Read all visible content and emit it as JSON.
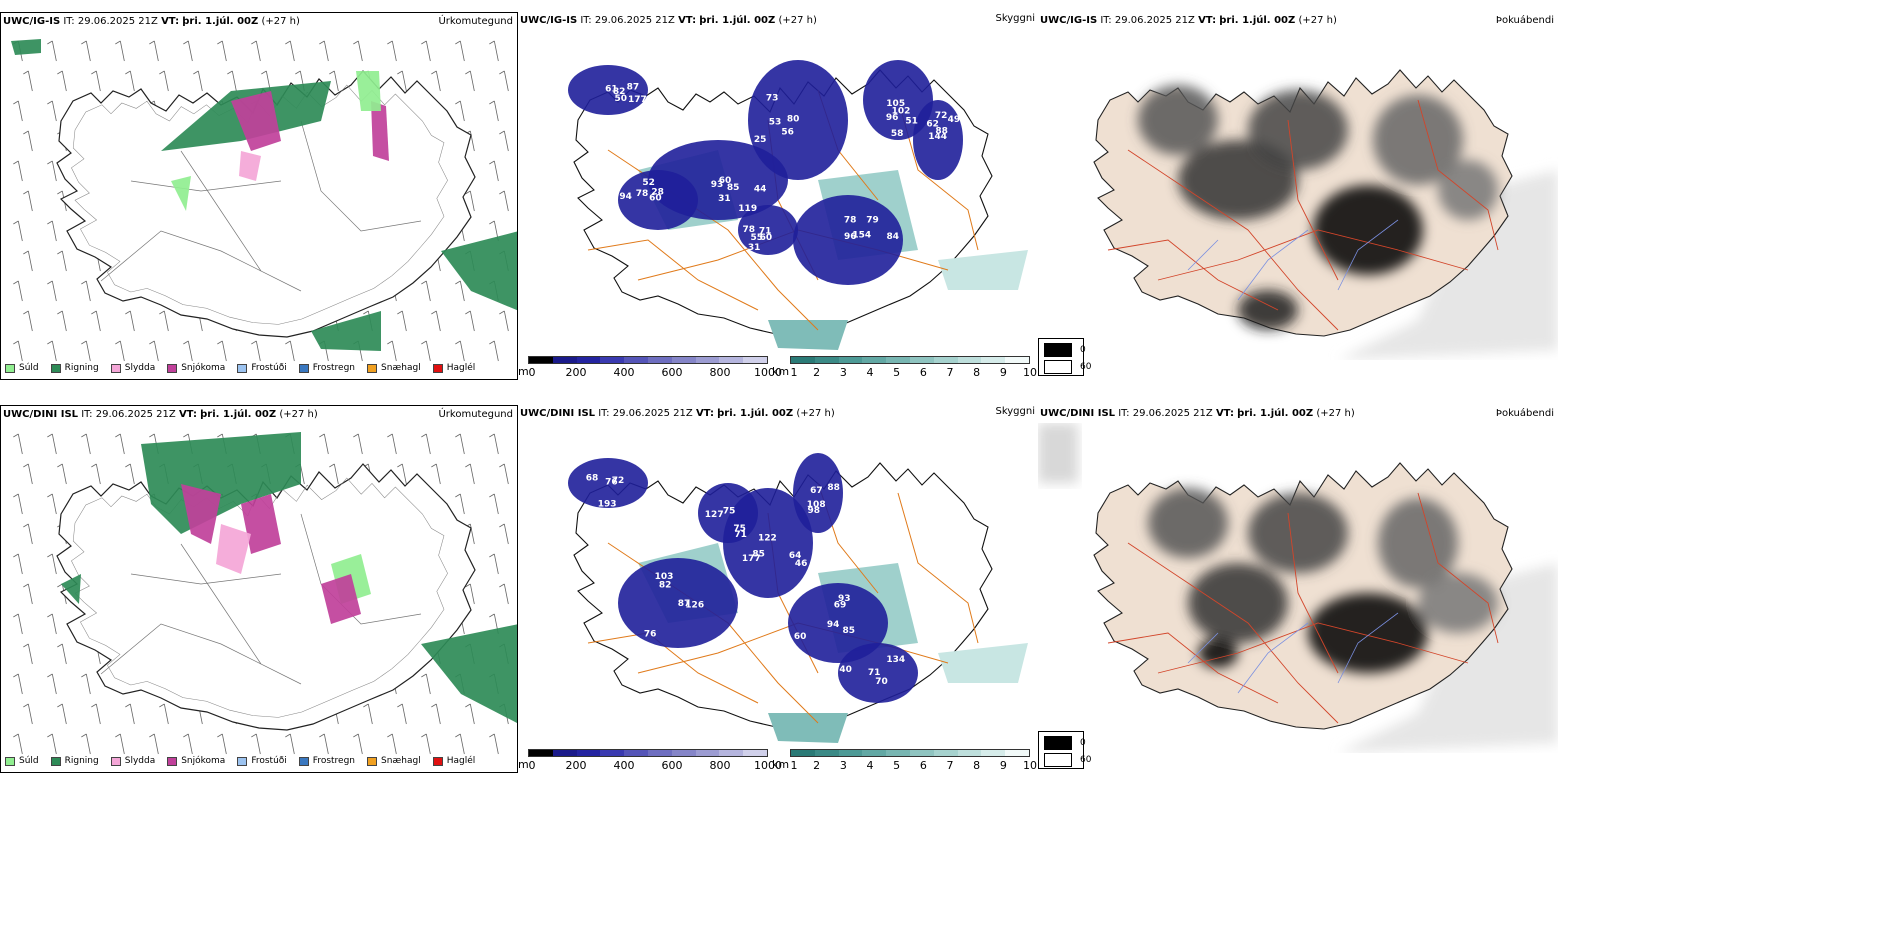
{
  "rows": [
    {
      "model": "UWC/IG-IS",
      "time_it": "IT: 29.06.2025 21Z",
      "time_vt_label": "VT:",
      "time_vt": "þri. 1.júl. 00Z",
      "lead": "(+27 h)"
    },
    {
      "model": "UWC/DINI ISL",
      "time_it": "IT: 29.06.2025 21Z",
      "time_vt_label": "VT:",
      "time_vt": "þri. 1.júl. 00Z",
      "lead": "(+27 h)"
    }
  ],
  "panels": {
    "precip_label": "Úrkomutegund",
    "cloud_label": "Skyggni",
    "fog_label": "Þokuábendi"
  },
  "precip_legend": [
    {
      "label": "Súld",
      "color": "#90EE90"
    },
    {
      "label": "Rigning",
      "color": "#2E8B57"
    },
    {
      "label": "Slydda",
      "color": "#F4A6D7"
    },
    {
      "label": "Snjókoma",
      "color": "#C0409A"
    },
    {
      "label": "Frostúði",
      "color": "#9CC3F0"
    },
    {
      "label": "Frostregn",
      "color": "#3A78C0"
    },
    {
      "label": "Snæhagl",
      "color": "#F0A020"
    },
    {
      "label": "Haglél",
      "color": "#E01010"
    }
  ],
  "ceiling_scale": {
    "unit": "m",
    "ticks": [
      "0",
      "200",
      "400",
      "600",
      "800",
      "1000"
    ],
    "colors": [
      "#000000",
      "#1a1a8a",
      "#2323a0",
      "#3a3ab0",
      "#5555b8",
      "#6e6ec0",
      "#8585c8",
      "#9c9cd2",
      "#b5b5de",
      "#d0d0ea"
    ]
  },
  "visibility_scale": {
    "unit": "km",
    "ticks": [
      "1",
      "2",
      "3",
      "4",
      "5",
      "6",
      "7",
      "8",
      "9",
      "10"
    ],
    "colors": [
      "#2a7a76",
      "#3b8a86",
      "#4d9a96",
      "#62a8a4",
      "#78b6b2",
      "#8fc4c0",
      "#a6d2ce",
      "#bedfdc",
      "#d6ecea",
      "#f2faf9"
    ]
  },
  "fog_key": {
    "low": "0",
    "high": "60",
    "low_color": "#000000",
    "high_color": "#ffffff"
  },
  "cloud_numbers_top": [
    "60",
    "56",
    "78",
    "51",
    "94",
    "61",
    "60",
    "62",
    "44",
    "25",
    "96",
    "102",
    "78",
    "87",
    "31",
    "144",
    "85",
    "53",
    "79",
    "58",
    "60",
    "82",
    "55",
    "72",
    "119",
    "80",
    "154",
    "96",
    "52",
    "177",
    "71",
    "88",
    "31",
    "73",
    "84",
    "105",
    "28",
    "50",
    "78",
    "49",
    "93"
  ],
  "cloud_numbers_bottom": [
    "87",
    "85",
    "69",
    "75",
    "40",
    "76",
    "108",
    "82",
    "64",
    "60",
    "75",
    "70",
    "68",
    "88",
    "76",
    "122",
    "85",
    "127",
    "134",
    "193",
    "67",
    "126",
    "177",
    "93",
    "71",
    "71",
    "72",
    "98",
    "103",
    "46",
    "94"
  ]
}
